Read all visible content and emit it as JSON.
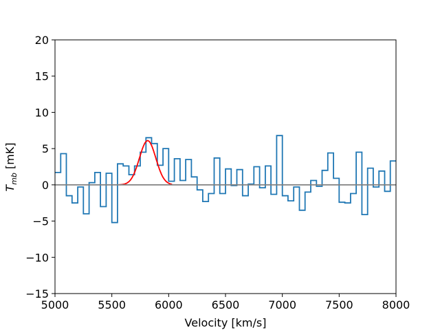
{
  "chart_data": {
    "type": "line",
    "title": "",
    "xlabel": "Velocity [km/s]",
    "ylabel_main": "T",
    "ylabel_sub": "mb",
    "ylabel_unit": " [mK]",
    "xlim": [
      5000,
      8000
    ],
    "ylim": [
      -15,
      20
    ],
    "xticks": [
      5000,
      5500,
      6000,
      6500,
      7000,
      7500,
      8000
    ],
    "yticks": [
      -15,
      -10,
      -5,
      0,
      5,
      10,
      15,
      20
    ],
    "grid": false,
    "colors": {
      "spectrum": "#1f77b4",
      "fit": "#ff0000",
      "baseline": "#808080"
    },
    "series": [
      {
        "kind": "step",
        "x": [
          5025,
          5075,
          5125,
          5175,
          5225,
          5275,
          5325,
          5375,
          5425,
          5475,
          5525,
          5575,
          5625,
          5675,
          5725,
          5775,
          5825,
          5875,
          5925,
          5975,
          6025,
          6075,
          6125,
          6175,
          6225,
          6275,
          6325,
          6375,
          6425,
          6475,
          6525,
          6575,
          6625,
          6675,
          6725,
          6775,
          6825,
          6875,
          6925,
          6975,
          7025,
          7075,
          7125,
          7175,
          7225,
          7275,
          7325,
          7375,
          7425,
          7475,
          7525,
          7575,
          7625,
          7675,
          7725,
          7775,
          7825,
          7875,
          7925,
          7975
        ],
        "values": [
          1.7,
          4.3,
          -1.5,
          -2.5,
          -0.3,
          -4.0,
          0.3,
          1.7,
          -3.0,
          1.6,
          -5.2,
          2.9,
          2.6,
          1.4,
          2.6,
          4.5,
          6.5,
          5.7,
          2.7,
          5.0,
          0.5,
          3.6,
          0.6,
          3.5,
          1.1,
          -0.7,
          -2.3,
          -1.2,
          3.7,
          -1.2,
          2.2,
          -0.1,
          2.1,
          -1.5,
          0.1,
          2.5,
          -0.4,
          2.6,
          -1.3,
          6.8,
          -1.5,
          -2.2,
          -0.3,
          -3.5,
          -1.0,
          0.6,
          -0.2,
          2.0,
          4.4,
          0.9,
          -2.4,
          -2.5,
          -1.2,
          4.5,
          -4.1,
          2.3,
          -0.3,
          1.9,
          -0.9,
          3.3
        ]
      },
      {
        "kind": "gaussian",
        "amplitude": 6.1,
        "center": 5815,
        "sigma": 72,
        "range": [
          5565,
          6030
        ]
      },
      {
        "kind": "baseline",
        "y": 0
      }
    ]
  }
}
